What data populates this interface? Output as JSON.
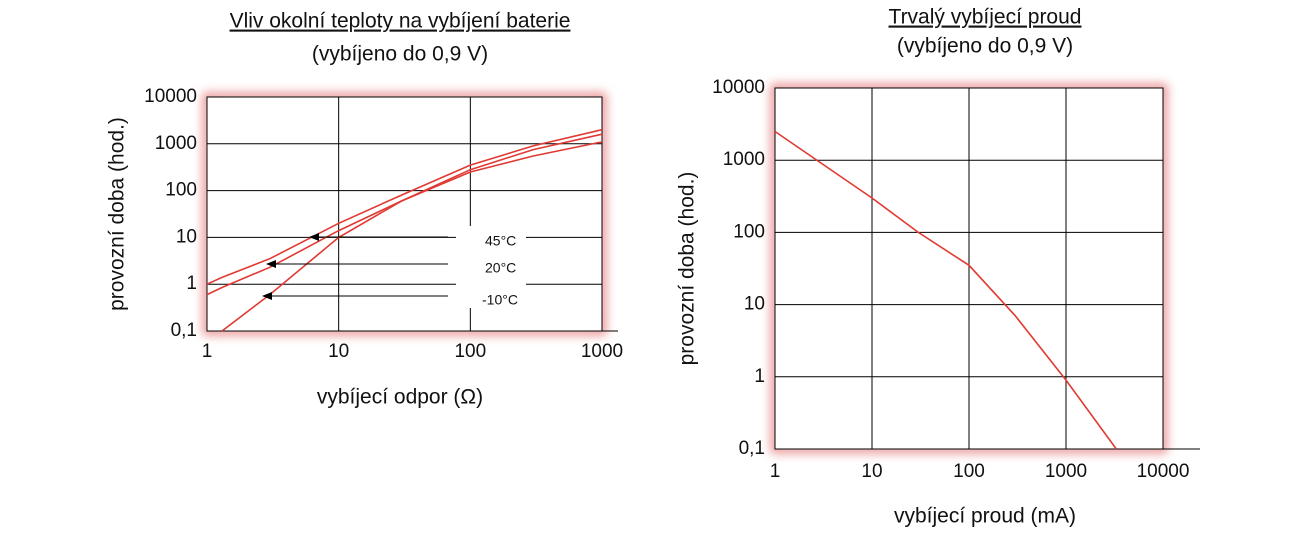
{
  "chart_data": [
    {
      "type": "line",
      "title": "Vliv okolní teploty na vybíjení baterie",
      "subtitle": "(vybíjeno do 0,9 V)",
      "x_label": "vybíjecí odpor (Ω)",
      "y_label": "provozní doba (hod.)",
      "log_x": true,
      "log_y": true,
      "grid": true,
      "x": [
        1,
        1.3,
        3,
        10,
        30,
        100,
        300,
        1000
      ],
      "series": [
        {
          "name": "45°C",
          "color": "#e03a32",
          "values": [
            1,
            1.4,
            3.5,
            20,
            80,
            350,
            900,
            2000
          ]
        },
        {
          "name": "20°C",
          "color": "#e03a32",
          "values": [
            0.6,
            0.85,
            2.3,
            14,
            60,
            280,
            750,
            1600
          ]
        },
        {
          "name": "-10°C",
          "color": "#e03a32",
          "values": [
            null,
            0.1,
            0.6,
            10,
            60,
            250,
            550,
            1100
          ]
        }
      ],
      "xlim": [
        1,
        1000
      ],
      "xticks": [
        1,
        10,
        100,
        1000
      ],
      "ylim": [
        0.1,
        10000
      ],
      "yticks": [
        {
          "value": 0.1,
          "label": "0,1"
        },
        1,
        10,
        100,
        1000,
        10000
      ]
    },
    {
      "type": "line",
      "title": "Trvalý vybíjecí proud",
      "subtitle": "(vybíjeno do 0,9 V)",
      "x_label": "vybíjecí proud (mA)",
      "y_label": "provozní doba (hod.)",
      "log_x": true,
      "log_y": true,
      "grid": true,
      "x": [
        1,
        10,
        30,
        100,
        300,
        1000,
        3300
      ],
      "values": [
        2500,
        300,
        100,
        35,
        7,
        0.9,
        0.1
      ],
      "color": "#e03a32",
      "xlim": [
        1,
        10000
      ],
      "xticks": [
        1,
        10,
        100,
        1000,
        10000
      ],
      "ylim": [
        0.1,
        10000
      ],
      "yticks": [
        {
          "value": 0.1,
          "label": "0,1"
        },
        1,
        10,
        100,
        1000,
        10000
      ]
    }
  ]
}
